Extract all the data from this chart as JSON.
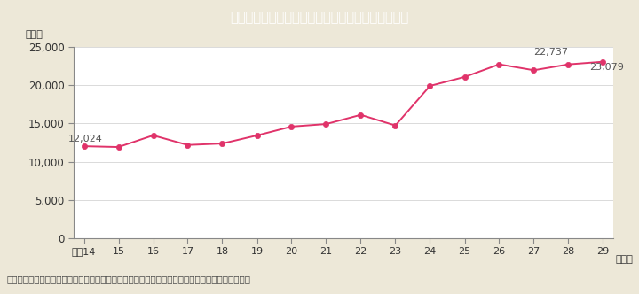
{
  "title": "Ｉ－７－７図　ストーカー事案の相談等件数の推移",
  "title_bg_color": "#2abcd4",
  "title_text_color": "#ffffff",
  "bg_color": "#ede8d8",
  "plot_bg_color": "#ffffff",
  "line_color": "#e0336a",
  "marker_color": "#e0336a",
  "ylabel": "（件）",
  "xlabel_suffix": "（年）",
  "xticklabels": [
    "平成14",
    "15",
    "16",
    "17",
    "18",
    "19",
    "20",
    "21",
    "22",
    "23",
    "24",
    "25",
    "26",
    "27",
    "28",
    "29"
  ],
  "x": [
    0,
    1,
    2,
    3,
    4,
    5,
    6,
    7,
    8,
    9,
    10,
    11,
    12,
    13,
    14,
    15
  ],
  "y": [
    12024,
    11918,
    13442,
    12185,
    12377,
    13436,
    14601,
    14927,
    16129,
    14739,
    19920,
    21089,
    22741,
    21968,
    22737,
    23079
  ],
  "ylim": [
    0,
    25000
  ],
  "yticks": [
    0,
    5000,
    10000,
    15000,
    20000,
    25000
  ],
  "label_first": "12,024",
  "label_28": "22,737",
  "label_29": "23,079",
  "footer": "（備考）警察庁「ストーカー事案及び配偶者からの暴力事案等への対応状況について」より作成。"
}
